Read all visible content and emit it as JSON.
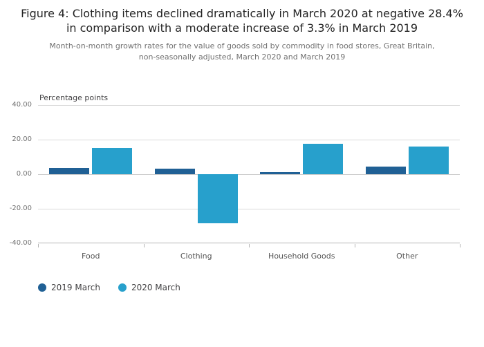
{
  "chart_data": {
    "type": "bar",
    "title": "Figure 4: Clothing items declined dramatically in March 2020 at negative 28.4% in comparison with a moderate increase of 3.3% in March 2019",
    "subtitle": "Month-on-month growth rates for the value of goods sold by commodity in food stores, Great Britain, non-seasonally adjusted, March 2020 and March 2019",
    "ylabel": "Percentage points",
    "xlabel": "",
    "categories": [
      "Food",
      "Clothing",
      "Household Goods",
      "Other"
    ],
    "series": [
      {
        "name": "2019 March",
        "color": "#206095",
        "values": [
          3.6,
          3.3,
          1.2,
          4.4
        ]
      },
      {
        "name": "2020 March",
        "color": "#27A0CC",
        "values": [
          15.3,
          -28.4,
          17.8,
          16.1
        ]
      }
    ],
    "ylim": [
      -40,
      40
    ],
    "yticks": [
      40,
      20,
      0,
      -20,
      -40
    ],
    "ytick_labels": [
      "40.00",
      "20.00",
      "0.00",
      "-20.00",
      "-40.00"
    ],
    "grid": true,
    "legend_position": "bottom-left"
  }
}
